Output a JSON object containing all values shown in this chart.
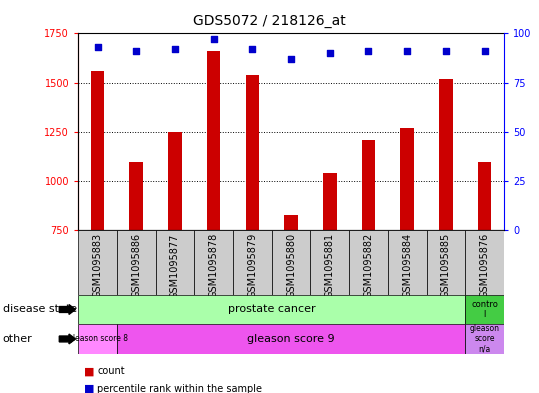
{
  "title": "GDS5072 / 218126_at",
  "samples": [
    "GSM1095883",
    "GSM1095886",
    "GSM1095877",
    "GSM1095878",
    "GSM1095879",
    "GSM1095880",
    "GSM1095881",
    "GSM1095882",
    "GSM1095884",
    "GSM1095885",
    "GSM1095876"
  ],
  "counts": [
    1560,
    1095,
    1250,
    1660,
    1540,
    825,
    1040,
    1210,
    1270,
    1520,
    1095
  ],
  "percentile_ranks": [
    93,
    91,
    92,
    97,
    92,
    87,
    90,
    91,
    91,
    91,
    91
  ],
  "ylim_left": [
    750,
    1750
  ],
  "ylim_right": [
    0,
    100
  ],
  "yticks_left": [
    750,
    1000,
    1250,
    1500,
    1750
  ],
  "yticks_right": [
    0,
    25,
    50,
    75,
    100
  ],
  "bar_color": "#cc0000",
  "dot_color": "#0000cc",
  "disease_state_colors": [
    "#aaffaa",
    "#44cc44"
  ],
  "other_colors_1": "#ff88ff",
  "other_colors_2": "#ee55ee",
  "other_colors_3": "#cc88ee",
  "legend_items": [
    "count",
    "percentile rank within the sample"
  ],
  "plot_bg_color": "#ffffff",
  "xlabel_bg_color": "#cccccc",
  "bar_width": 0.35,
  "title_fontsize": 10,
  "tick_fontsize": 7,
  "label_fontsize": 8,
  "annot_fontsize": 7
}
